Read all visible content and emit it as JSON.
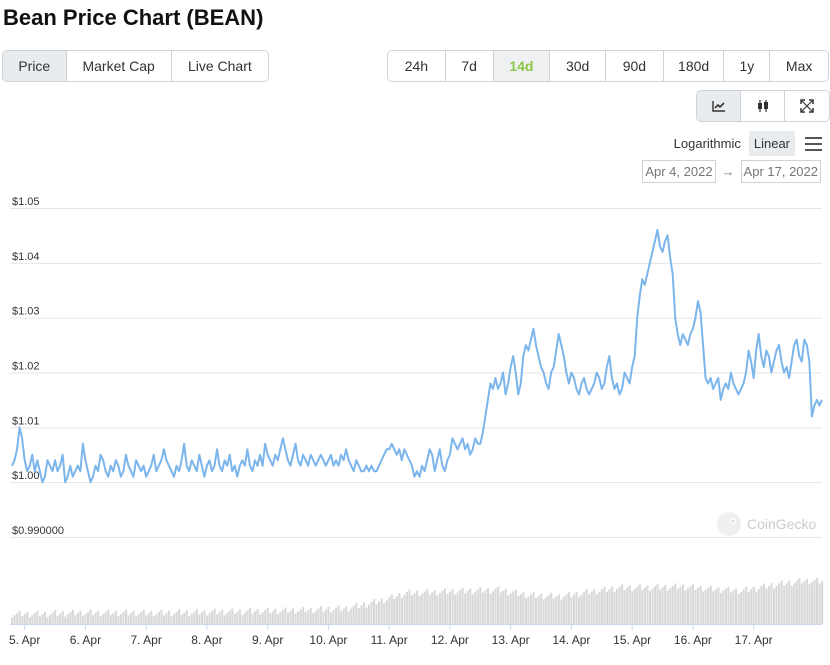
{
  "page": {
    "title": "Bean Price Chart (BEAN)",
    "chart_types": [
      "Price",
      "Market Cap",
      "Live Chart"
    ],
    "active_chart_type": "Price",
    "ranges": [
      "24h",
      "7d",
      "14d",
      "30d",
      "90d",
      "180d",
      "1y",
      "Max"
    ],
    "active_range": "14d",
    "view_icons": [
      "line-chart-icon",
      "candlestick-icon",
      "expand-icon"
    ],
    "scale_options": {
      "log": "Logarithmic",
      "linear": "Linear"
    },
    "active_scale": "Linear",
    "menu_icon": "hamburger-menu-icon",
    "date_from": "Apr 4, 2022",
    "date_arrow": "→",
    "date_to": "Apr 17, 2022",
    "watermark": "CoinGecko",
    "colors": {
      "line": "#7cb5ec",
      "volume": "#d9d9d9",
      "accent": "#8dc647",
      "grid": "#e6e6e6"
    }
  },
  "chart_data": {
    "type": "line",
    "series": [
      {
        "x_start": "Apr 4, 2022 ~19:00",
        "interval_hours": 1,
        "values": [
          1.003,
          1.004,
          1.006,
          1.01,
          1.008,
          1.004,
          1.002,
          1.003,
          1.005,
          1.002,
          1.004,
          1.002,
          1.0,
          1.001,
          1.004,
          1.003,
          1.002,
          1.004,
          1.002,
          1.003,
          1.005,
          1.0,
          1.001,
          1.003,
          1.001,
          1.002,
          1.003,
          1.002,
          1.007,
          1.004,
          1.002,
          1.0,
          1.001,
          1.003,
          1.002,
          1.005,
          1.004,
          1.002,
          1.001,
          1.003,
          1.002,
          1.004,
          1.003,
          1.001,
          1.002,
          1.005,
          1.003,
          1.002,
          1.001,
          1.004,
          1.003,
          1.002,
          1.003,
          1.001,
          1.002,
          1.003,
          1.005,
          1.002,
          1.003,
          1.004,
          1.006,
          1.004,
          1.003,
          1.002,
          1.001,
          1.003,
          1.002,
          1.004,
          1.007,
          1.003,
          1.002,
          1.004,
          1.003,
          1.002,
          1.005,
          1.003,
          1.001,
          1.003,
          1.004,
          1.002,
          1.003,
          1.006,
          1.003,
          1.002,
          1.004,
          1.003,
          1.005,
          1.002,
          1.003,
          1.001,
          1.003,
          1.004,
          1.003,
          1.006,
          1.003,
          1.002,
          1.004,
          1.003,
          1.005,
          1.003,
          1.007,
          1.005,
          1.004,
          1.003,
          1.005,
          1.004,
          1.006,
          1.008,
          1.006,
          1.004,
          1.003,
          1.005,
          1.007,
          1.004,
          1.003,
          1.005,
          1.004,
          1.003,
          1.005,
          1.004,
          1.003,
          1.004,
          1.005,
          1.004,
          1.003,
          1.004,
          1.005,
          1.003,
          1.004,
          1.003,
          1.005,
          1.004,
          1.006,
          1.004,
          1.003,
          1.002,
          1.004,
          1.003,
          1.002,
          1.002,
          1.003,
          1.002,
          1.003,
          1.002,
          1.002,
          1.003,
          1.004,
          1.005,
          1.006,
          1.006,
          1.007,
          1.006,
          1.005,
          1.006,
          1.004,
          1.006,
          1.005,
          1.004,
          1.003,
          1.001,
          1.002,
          1.001,
          1.003,
          1.002,
          1.004,
          1.006,
          1.005,
          1.002,
          1.004,
          1.006,
          1.003,
          1.002,
          1.004,
          1.005,
          1.008,
          1.007,
          1.006,
          1.007,
          1.008,
          1.006,
          1.007,
          1.005,
          1.006,
          1.008,
          1.007,
          1.007,
          1.009,
          1.012,
          1.015,
          1.018,
          1.017,
          1.019,
          1.017,
          1.018,
          1.02,
          1.016,
          1.018,
          1.021,
          1.023,
          1.02,
          1.016,
          1.018,
          1.023,
          1.025,
          1.024,
          1.026,
          1.028,
          1.025,
          1.023,
          1.021,
          1.02,
          1.018,
          1.017,
          1.02,
          1.021,
          1.024,
          1.027,
          1.025,
          1.023,
          1.02,
          1.018,
          1.02,
          1.019,
          1.017,
          1.016,
          1.018,
          1.019,
          1.017,
          1.016,
          1.017,
          1.018,
          1.02,
          1.019,
          1.017,
          1.018,
          1.021,
          1.023,
          1.019,
          1.017,
          1.018,
          1.016,
          1.017,
          1.02,
          1.019,
          1.018,
          1.021,
          1.023,
          1.03,
          1.034,
          1.037,
          1.036,
          1.038,
          1.04,
          1.042,
          1.044,
          1.046,
          1.043,
          1.042,
          1.044,
          1.045,
          1.041,
          1.038,
          1.03,
          1.027,
          1.025,
          1.027,
          1.026,
          1.025,
          1.027,
          1.028,
          1.03,
          1.033,
          1.031,
          1.025,
          1.019,
          1.018,
          1.019,
          1.017,
          1.018,
          1.019,
          1.015,
          1.017,
          1.018,
          1.017,
          1.02,
          1.018,
          1.017,
          1.016,
          1.017,
          1.018,
          1.02,
          1.024,
          1.022,
          1.019,
          1.024,
          1.027,
          1.023,
          1.021,
          1.024,
          1.023,
          1.02,
          1.022,
          1.024,
          1.025,
          1.022,
          1.02,
          1.021,
          1.019,
          1.022,
          1.025,
          1.026,
          1.023,
          1.022,
          1.026,
          1.025,
          1.022,
          1.012,
          1.014,
          1.015,
          1.014,
          1.015
        ]
      }
    ],
    "volume": [
      0.1,
      0.11,
      0.11,
      0.12,
      0.12,
      0.12,
      0.12,
      0.12,
      0.12,
      0.12,
      0.13,
      0.13,
      0.13,
      0.13,
      0.13,
      0.13,
      0.13,
      0.13,
      0.13,
      0.13,
      0.13,
      0.13,
      0.13,
      0.13,
      0.12,
      0.12,
      0.12,
      0.12,
      0.12,
      0.12,
      0.12,
      0.12,
      0.12,
      0.12,
      0.12,
      0.11,
      0.11,
      0.11,
      0.11,
      0.11,
      0.1,
      0.1,
      0.1,
      0.1,
      0.1,
      0.1,
      0.1,
      0.1,
      0.1,
      0.1,
      0.1,
      0.1,
      0.1,
      0.1,
      0.1,
      0.1,
      0.1,
      0.1,
      0.1,
      0.1,
      0.1,
      0.1,
      0.1,
      0.1,
      0.1,
      0.1,
      0.1,
      0.1,
      0.1,
      0.1,
      0.1,
      0.1,
      0.1,
      0.1,
      0.1,
      0.1,
      0.1,
      0.1,
      0.1,
      0.1,
      0.1,
      0.1,
      0.1,
      0.1,
      0.1,
      0.1,
      0.1,
      0.1,
      0.1,
      0.1,
      0.1,
      0.1,
      0.1,
      0.1,
      0.1,
      0.1,
      0.1,
      0.1,
      0.1,
      0.1,
      0.1,
      0.1,
      0.1,
      0.1,
      0.1,
      0.1,
      0.1,
      0.1,
      0.1,
      0.1,
      0.1,
      0.1,
      0.1,
      0.1,
      0.1,
      0.1,
      0.1,
      0.1,
      0.1,
      0.1,
      0.1,
      0.1,
      0.1,
      0.1,
      0.1,
      0.1,
      0.1,
      0.1,
      0.1,
      0.1,
      0.1,
      0.1,
      0.1,
      0.1,
      0.1,
      0.1,
      0.1,
      0.1,
      0.1,
      0.1,
      0.1,
      0.1,
      0.1,
      0.1,
      0.1,
      0.1,
      0.1,
      0.1,
      0.1,
      0.1,
      0.1,
      0.1,
      0.1,
      0.1,
      0.1,
      0.1,
      0.1,
      0.1,
      0.1,
      0.1,
      0.1,
      0.1,
      0.1,
      0.1,
      0.1,
      0.1,
      0.1,
      0.1,
      0.1,
      0.1,
      0.1,
      0.1,
      0.1,
      0.1,
      0.1,
      0.1,
      0.1,
      0.1,
      0.1,
      0.1,
      0.1,
      0.1,
      0.1,
      0.1,
      0.1,
      0.1,
      0.1,
      0.1,
      0.1,
      0.1,
      0.1,
      0.1,
      0.1,
      0.1,
      0.1,
      0.1,
      0.1,
      0.1,
      0.1,
      0.1,
      0.1,
      0.1,
      0.1,
      0.1,
      0.1,
      0.1,
      0.1,
      0.1,
      0.1,
      0.1,
      0.1,
      0.1,
      0.1,
      0.1,
      0.1,
      0.1,
      0.1,
      0.1,
      0.1,
      0.1,
      0.1,
      0.1,
      0.1,
      0.1,
      0.1,
      0.1,
      0.1,
      0.1,
      0.1,
      0.1,
      0.1,
      0.1,
      0.1,
      0.1,
      0.1,
      0.1,
      0.1,
      0.1,
      0.1,
      0.1,
      0.1,
      0.1,
      0.1,
      0.1,
      0.1,
      0.1,
      0.1,
      0.1,
      0.1,
      0.1,
      0.1,
      0.1,
      0.1,
      0.1,
      0.1,
      0.1,
      0.1,
      0.1,
      0.1,
      0.1,
      0.1,
      0.1,
      0.1,
      0.1,
      0.1,
      0.1,
      0.1,
      0.1,
      0.1,
      0.1,
      0.1,
      0.1,
      0.1,
      0.1,
      0.1,
      0.1,
      0.1,
      0.1,
      0.1,
      0.1,
      0.1,
      0.1,
      0.1,
      0.1,
      0.1,
      0.1,
      0.1,
      0.1,
      0.1,
      0.1,
      0.1,
      0.1,
      0.1,
      0.1,
      0.1,
      0.1,
      0.1,
      0.1,
      0.1,
      0.1,
      0.1,
      0.1,
      0.1,
      0.1,
      0.1,
      0.1,
      0.1,
      0.1,
      0.1
    ],
    "volume_profile": [
      [
        0,
        0.09
      ],
      [
        12,
        0.09
      ],
      [
        24,
        0.1
      ],
      [
        60,
        0.1
      ],
      [
        84,
        0.11
      ],
      [
        108,
        0.12
      ],
      [
        132,
        0.14
      ],
      [
        144,
        0.2
      ],
      [
        156,
        0.28
      ],
      [
        168,
        0.29
      ],
      [
        180,
        0.3
      ],
      [
        192,
        0.31
      ],
      [
        204,
        0.26
      ],
      [
        216,
        0.25
      ],
      [
        228,
        0.29
      ],
      [
        240,
        0.33
      ],
      [
        252,
        0.33
      ],
      [
        264,
        0.34
      ],
      [
        276,
        0.32
      ],
      [
        288,
        0.3
      ],
      [
        300,
        0.35
      ],
      [
        312,
        0.39
      ],
      [
        318,
        0.39
      ]
    ],
    "x_ticks": [
      "5. Apr",
      "6. Apr",
      "7. Apr",
      "8. Apr",
      "9. Apr",
      "10. Apr",
      "11. Apr",
      "12. Apr",
      "13. Apr",
      "14. Apr",
      "15. Apr",
      "16. Apr",
      "17. Apr"
    ],
    "y_ticks": [
      "$1.05",
      "$1.04",
      "$1.03",
      "$1.02",
      "$1.01",
      "$1.00",
      "$0.990000"
    ],
    "y_tick_values": [
      1.05,
      1.04,
      1.03,
      1.02,
      1.01,
      1.0,
      0.99
    ],
    "ylim": [
      0.99,
      1.05
    ],
    "grid": true,
    "legend": false
  }
}
